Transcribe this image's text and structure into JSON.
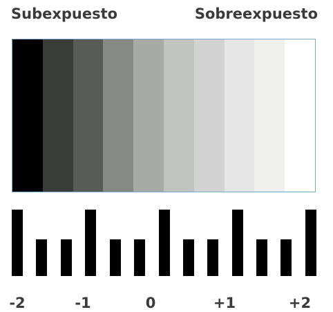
{
  "header": {
    "left_label": "Subexpuesto",
    "right_label": "Sobreexpuesto"
  },
  "gray_strip": {
    "patches": [
      "#000000",
      "#3a3c39",
      "#595b58",
      "#878986",
      "#a8aaa7",
      "#c2c4c1",
      "#d3d3d3",
      "#e6e6e6",
      "#efefee",
      "#ffffff"
    ]
  },
  "exposure_scale": {
    "labels": [
      "-2",
      "-1",
      "0",
      "+1",
      "+2"
    ],
    "ticks": [
      "major",
      "minor",
      "minor",
      "major",
      "minor",
      "minor",
      "major",
      "minor",
      "minor",
      "major",
      "minor",
      "minor",
      "major"
    ]
  }
}
